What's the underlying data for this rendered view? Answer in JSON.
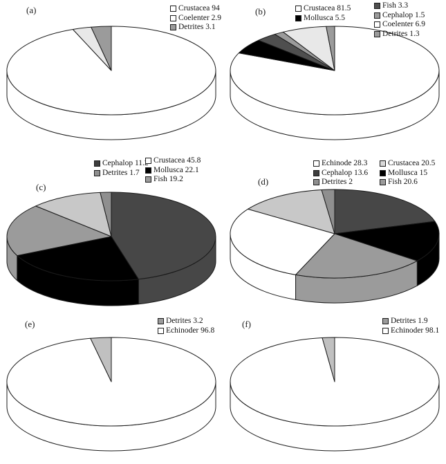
{
  "figure": {
    "background": "#ffffff",
    "outline_color": "#1a1a1a",
    "description_visible_text_only": true
  },
  "chart_data": [
    {
      "id": "a",
      "panel_label": "(a)",
      "type": "pie",
      "slices": [
        {
          "label": "Crustacea",
          "value": 94,
          "color": "#ffffff"
        },
        {
          "label": "Coelenter",
          "value": 2.9,
          "color": "#e8e8e8"
        },
        {
          "label": "Detrites",
          "value": 3.1,
          "color": "#9b9b9b"
        }
      ],
      "legend_columns": [
        [
          {
            "text": "Crustacea 94",
            "swatch": "#ffffff"
          },
          {
            "text": "Coelenter 2.9",
            "swatch": "#ffffff"
          },
          {
            "text": "Detrites 3.1",
            "swatch": "#9b9b9b"
          }
        ]
      ]
    },
    {
      "id": "b",
      "panel_label": "(b)",
      "type": "pie",
      "slices": [
        {
          "label": "Crustacea",
          "value": 81.5,
          "color": "#ffffff"
        },
        {
          "label": "Mollusca",
          "value": 5.5,
          "color": "#000000"
        },
        {
          "label": "Fish",
          "value": 3.3,
          "color": "#4f4f4f"
        },
        {
          "label": "Cephalop",
          "value": 1.5,
          "color": "#9b9b9b"
        },
        {
          "label": "Coelenter",
          "value": 6.9,
          "color": "#e8e8e8"
        },
        {
          "label": "Detrites",
          "value": 1.3,
          "color": "#9b9b9b"
        }
      ],
      "legend_columns": [
        [
          {
            "text": "Crustacea 81.5",
            "swatch": "#ffffff"
          },
          {
            "text": "Mollusca 5.5",
            "swatch": "#000000"
          }
        ],
        [
          {
            "text": "Fish 3.3",
            "swatch": "#4f4f4f"
          },
          {
            "text": "Cephalop 1.5",
            "swatch": "#9b9b9b"
          },
          {
            "text": "Coelenter 6.9",
            "swatch": "#ffffff"
          },
          {
            "text": "Detrites 1.3",
            "swatch": "#9b9b9b"
          }
        ]
      ]
    },
    {
      "id": "c",
      "panel_label": "(c)",
      "type": "pie",
      "slices": [
        {
          "label": "Crustacea",
          "value": 45.8,
          "color": "#474747"
        },
        {
          "label": "Mollusca",
          "value": 22.1,
          "color": "#000000"
        },
        {
          "label": "Fish",
          "value": 19.2,
          "color": "#9b9b9b"
        },
        {
          "label": "Cephalop",
          "value": 11.2,
          "color": "#c8c8c8"
        },
        {
          "label": "Detrites",
          "value": 1.7,
          "color": "#8f8f8f"
        }
      ],
      "legend_columns": [
        [
          {
            "text": "Cephalop 11.2",
            "swatch": "#3d3d3d"
          },
          {
            "text": "Detrites 1.7",
            "swatch": "#8f8f8f"
          }
        ],
        [
          {
            "text": "Crustacea 45.8",
            "swatch": "#ffffff"
          },
          {
            "text": "Mollusca 22.1",
            "swatch": "#000000"
          },
          {
            "text": "Fish 19.2",
            "swatch": "#9b9b9b"
          }
        ]
      ]
    },
    {
      "id": "d",
      "panel_label": "(d)",
      "type": "pie",
      "slices": [
        {
          "label": "Crustacea",
          "value": 20.5,
          "color": "#474747"
        },
        {
          "label": "Mollusca",
          "value": 15,
          "color": "#000000"
        },
        {
          "label": "Fish",
          "value": 20.6,
          "color": "#9b9b9b"
        },
        {
          "label": "Echinode",
          "value": 28.3,
          "color": "#ffffff"
        },
        {
          "label": "Cephalop",
          "value": 13.6,
          "color": "#c8c8c8"
        },
        {
          "label": "Detrites",
          "value": 2,
          "color": "#8f8f8f"
        }
      ],
      "legend_columns": [
        [
          {
            "text": "Echinode 28.3",
            "swatch": "#ffffff"
          },
          {
            "text": "Cephalop 13.6",
            "swatch": "#3d3d3d"
          },
          {
            "text": "Detrites 2",
            "swatch": "#8f8f8f"
          }
        ],
        [
          {
            "text": "Crustacea 20.5",
            "swatch": "#d9d9d9"
          },
          {
            "text": "Mollusca 15",
            "swatch": "#000000"
          },
          {
            "text": "Fish 20.6",
            "swatch": "#9b9b9b"
          }
        ]
      ]
    },
    {
      "id": "e",
      "panel_label": "(e)",
      "type": "pie",
      "slices": [
        {
          "label": "Echinoder",
          "value": 96.8,
          "color": "#ffffff"
        },
        {
          "label": "Detrites",
          "value": 3.2,
          "color": "#c0c0c0"
        }
      ],
      "legend_columns": [
        [
          {
            "text": "Detrites 3.2",
            "swatch": "#9b9b9b"
          },
          {
            "text": "Echinoder 96.8",
            "swatch": "#ffffff"
          }
        ]
      ]
    },
    {
      "id": "f",
      "panel_label": "(f)",
      "type": "pie",
      "slices": [
        {
          "label": "Echinoder",
          "value": 98.1,
          "color": "#ffffff"
        },
        {
          "label": "Detrites",
          "value": 1.9,
          "color": "#c0c0c0"
        }
      ],
      "legend_columns": [
        [
          {
            "text": "Detrites 1.9",
            "swatch": "#9b9b9b"
          },
          {
            "text": "Echinoder 98.1",
            "swatch": "#ffffff"
          }
        ]
      ]
    }
  ]
}
